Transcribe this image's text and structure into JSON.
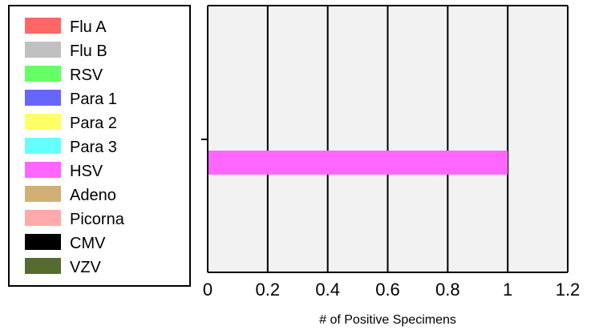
{
  "chart_data": {
    "type": "bar",
    "orientation": "horizontal",
    "title": "",
    "xlabel": "# of Positive Specimens",
    "ylabel": "",
    "xlim": [
      0,
      1.2
    ],
    "x_ticks": [
      "0",
      "0.2",
      "0.4",
      "0.6",
      "0.8",
      "1",
      "1.2"
    ],
    "grid": true,
    "legend_position": "left",
    "legend": [
      {
        "name": "Flu A",
        "color": "#ff6666"
      },
      {
        "name": "Flu B",
        "color": "#c0c0c0"
      },
      {
        "name": "RSV",
        "color": "#66ff66"
      },
      {
        "name": "Para 1",
        "color": "#6666ff"
      },
      {
        "name": "Para 2",
        "color": "#ffff66"
      },
      {
        "name": "Para 3",
        "color": "#66ffff"
      },
      {
        "name": "HSV",
        "color": "#ff66ff"
      },
      {
        "name": "Adeno",
        "color": "#d2b074"
      },
      {
        "name": "Picorna",
        "color": "#ffaaaa"
      },
      {
        "name": "CMV",
        "color": "#000000"
      },
      {
        "name": "VZV",
        "color": "#556b2f"
      }
    ],
    "bars": [
      {
        "series": "HSV",
        "value": 1,
        "color": "#ff66ff"
      }
    ]
  }
}
